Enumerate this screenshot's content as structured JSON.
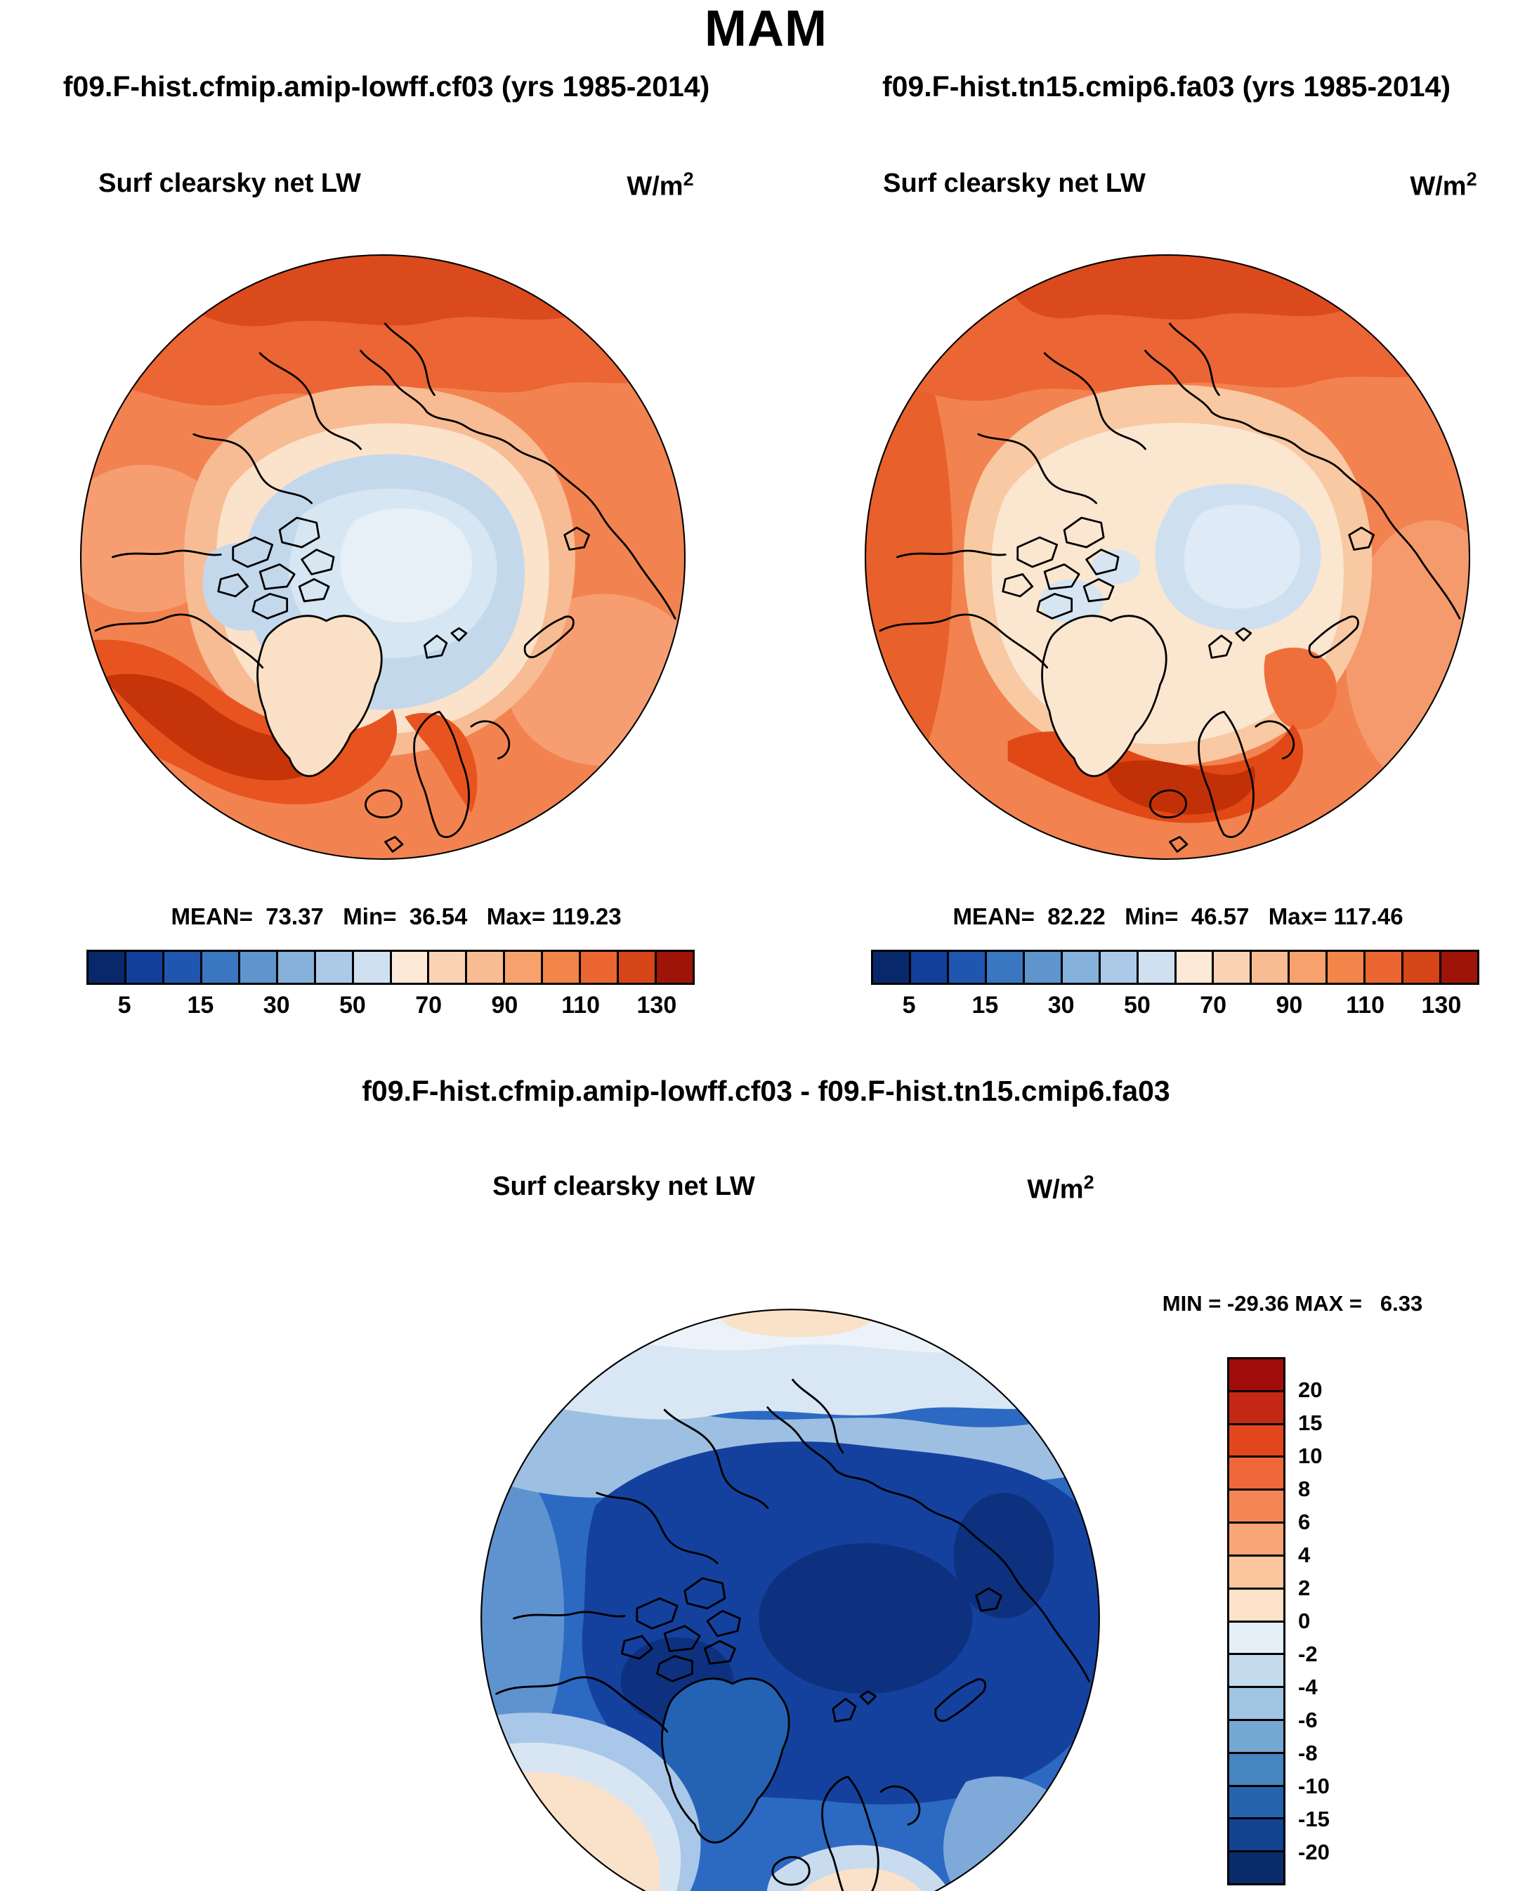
{
  "page_title": "MAM",
  "panels": {
    "left": {
      "header": "f09.F-hist.cfmip.amip-lowff.cf03 (yrs 1985-2014)",
      "field_label": "Surf clearsky net LW",
      "units_base": "W/m",
      "units_exponent": "2",
      "stats_text": "MEAN=  73.37   Min=  36.54   Max= 119.23"
    },
    "right": {
      "header": "f09.F-hist.tn15.cmip6.fa03 (yrs 1985-2014)",
      "field_label": "Surf clearsky net LW",
      "units_base": "W/m",
      "units_exponent": "2",
      "stats_text": "MEAN=  82.22   Min=  46.57   Max= 117.46"
    },
    "diff": {
      "header": "f09.F-hist.cfmip.amip-lowff.cf03 - f09.F-hist.tn15.cmip6.fa03",
      "field_label": "Surf clearsky net LW",
      "units_base": "W/m",
      "units_exponent": "2",
      "minmax_text": "MIN = -29.36 MAX =   6.33"
    }
  },
  "colorbar_horizontal": {
    "tick_labels": [
      "5",
      "15",
      "30",
      "50",
      "70",
      "90",
      "110",
      "130"
    ],
    "colors": [
      "#08286B",
      "#123F9A",
      "#1F57B0",
      "#3B77C0",
      "#5E95CC",
      "#85B1DB",
      "#ABCAE8",
      "#CFE0F1",
      "#FCE9D7",
      "#FAD3B5",
      "#F9BC92",
      "#F7A26D",
      "#F28549",
      "#EA652F",
      "#D64518",
      "#9E1408"
    ]
  },
  "colorbar_vertical": {
    "tick_labels": [
      "20",
      "15",
      "10",
      "8",
      "6",
      "4",
      "2",
      "0",
      "-2",
      "-4",
      "-6",
      "-8",
      "-10",
      "-15",
      "-20"
    ],
    "colors": [
      "#A00D0A",
      "#C22814",
      "#E2461C",
      "#EF683A",
      "#F48656",
      "#F8A577",
      "#FBC59E",
      "#FDE3C8",
      "#E4EFF8",
      "#C4DBEE",
      "#9FC5E2",
      "#74A8D2",
      "#4585C0",
      "#2563AE",
      "#12448F",
      "#0A2C6A"
    ]
  },
  "chart_data": [
    {
      "type": "heatmap",
      "subtype": "north-polar-stereographic-filled-contour-map",
      "season": "MAM",
      "title": "f09.F-hist.cfmip.amip-lowff.cf03 (yrs 1985-2014)",
      "field": "Surf clearsky net LW",
      "units": "W/m^2",
      "mean": 73.37,
      "min": 36.54,
      "max": 119.23,
      "contour_levels": [
        5,
        10,
        15,
        20,
        30,
        40,
        50,
        60,
        70,
        80,
        90,
        100,
        110,
        120,
        130
      ],
      "labeled_levels": [
        5,
        15,
        30,
        50,
        70,
        90,
        110,
        130
      ],
      "palette": "blue-white-red",
      "legend_position": "below"
    },
    {
      "type": "heatmap",
      "subtype": "north-polar-stereographic-filled-contour-map",
      "season": "MAM",
      "title": "f09.F-hist.tn15.cmip6.fa03 (yrs 1985-2014)",
      "field": "Surf clearsky net LW",
      "units": "W/m^2",
      "mean": 82.22,
      "min": 46.57,
      "max": 117.46,
      "contour_levels": [
        5,
        10,
        15,
        20,
        30,
        40,
        50,
        60,
        70,
        80,
        90,
        100,
        110,
        120,
        130
      ],
      "labeled_levels": [
        5,
        15,
        30,
        50,
        70,
        90,
        110,
        130
      ],
      "palette": "blue-white-red",
      "legend_position": "below"
    },
    {
      "type": "heatmap",
      "subtype": "north-polar-stereographic-filled-contour-map",
      "season": "MAM",
      "title": "f09.F-hist.cfmip.amip-lowff.cf03 - f09.F-hist.tn15.cmip6.fa03",
      "field": "Surf clearsky net LW (difference)",
      "units": "W/m^2",
      "min": -29.36,
      "max": 6.33,
      "contour_levels": [
        -20,
        -15,
        -10,
        -8,
        -6,
        -4,
        -2,
        0,
        2,
        4,
        6,
        8,
        10,
        15,
        20
      ],
      "labeled_levels": [
        20,
        15,
        10,
        8,
        6,
        4,
        2,
        0,
        -2,
        -4,
        -6,
        -8,
        -10,
        -15,
        -20
      ],
      "palette": "red-white-blue",
      "legend_position": "right"
    }
  ]
}
